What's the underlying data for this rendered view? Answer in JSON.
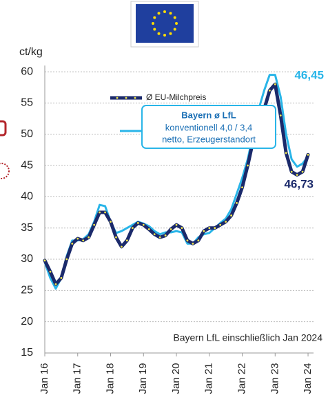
{
  "chart_data": {
    "type": "line",
    "y_label": "ct/kg",
    "annotation": "Bayern LfL einschließlich Jan 2024",
    "x": [
      0,
      2,
      4,
      6,
      8,
      10,
      12,
      14,
      16,
      18,
      20,
      22,
      24,
      26,
      28,
      30,
      32,
      34,
      36,
      38,
      40,
      42,
      44,
      46,
      48,
      50,
      52,
      54,
      56,
      58,
      60,
      62,
      64,
      66,
      68,
      70,
      72,
      74,
      76,
      78,
      80,
      82,
      84,
      86,
      88,
      90,
      92,
      94,
      96
    ],
    "xlim": [
      0,
      98
    ],
    "xticks": [
      {
        "value": 0,
        "label": "Jan 16"
      },
      {
        "value": 12,
        "label": "Jan 17"
      },
      {
        "value": 24,
        "label": "Jan 18"
      },
      {
        "value": 36,
        "label": "Jan 19"
      },
      {
        "value": 48,
        "label": "Jan 20"
      },
      {
        "value": 60,
        "label": "Jan 21"
      },
      {
        "value": 72,
        "label": "Jan 22"
      },
      {
        "value": 84,
        "label": "Jan 23"
      },
      {
        "value": 96,
        "label": "Jan 24"
      }
    ],
    "ylim": [
      15,
      61
    ],
    "yticks": [
      15,
      20,
      25,
      30,
      35,
      40,
      45,
      50,
      55,
      60
    ],
    "grid": true,
    "series": [
      {
        "name": "Ø EU-Milchpreis",
        "color": "#1b2a6b",
        "marker_color": "#f3e84a",
        "values": [
          29.8,
          28,
          26,
          27,
          30,
          32.5,
          33.3,
          33,
          33.5,
          35.5,
          37.5,
          37.5,
          36,
          33.5,
          32,
          33,
          35,
          35.8,
          35.5,
          34.8,
          34,
          33.5,
          33.8,
          34.8,
          35.5,
          35,
          33,
          32.5,
          33,
          34.5,
          35,
          35,
          35.5,
          36,
          37,
          39,
          41.5,
          45,
          49,
          52,
          54,
          57,
          58,
          53,
          47,
          44,
          43.5,
          44,
          46.73
        ],
        "value_labels": [
          null,
          null,
          null,
          null,
          null,
          null,
          null,
          null,
          null,
          null,
          null,
          null,
          null,
          null,
          null,
          null,
          null,
          null,
          null,
          null,
          null,
          null,
          null,
          null,
          null,
          null,
          null,
          null,
          null,
          null,
          null,
          null,
          null,
          null,
          null,
          null,
          null,
          null,
          null,
          null,
          null,
          null,
          null,
          null,
          null,
          null,
          null,
          null,
          "46,73"
        ]
      },
      {
        "name": "Bayern ø LfL",
        "legend_note": [
          "konventionell  4,0 / 3,4",
          "netto, Erzeugerstandort"
        ],
        "color": "#29b5e8",
        "values": [
          29.5,
          27,
          25.3,
          27,
          30.5,
          33,
          33,
          33.2,
          34,
          36,
          38.7,
          38.5,
          36,
          34.2,
          34.5,
          35,
          35.5,
          36,
          35.7,
          35.3,
          34.5,
          34,
          34.3,
          34.3,
          34.5,
          34.3,
          32.5,
          32.5,
          33.5,
          34,
          34.2,
          35,
          35.8,
          36.5,
          38,
          40.5,
          43,
          46,
          50,
          54,
          57,
          59.5,
          59.5,
          56,
          50,
          46,
          44.8,
          45.3,
          46.45
        ],
        "value_labels": [
          null,
          null,
          null,
          null,
          null,
          null,
          null,
          null,
          null,
          null,
          null,
          null,
          null,
          null,
          null,
          null,
          null,
          null,
          null,
          null,
          null,
          null,
          null,
          null,
          null,
          null,
          null,
          null,
          null,
          null,
          null,
          null,
          null,
          null,
          null,
          null,
          null,
          null,
          null,
          null,
          null,
          null,
          null,
          null,
          null,
          null,
          null,
          null,
          "46,45"
        ]
      }
    ]
  }
}
